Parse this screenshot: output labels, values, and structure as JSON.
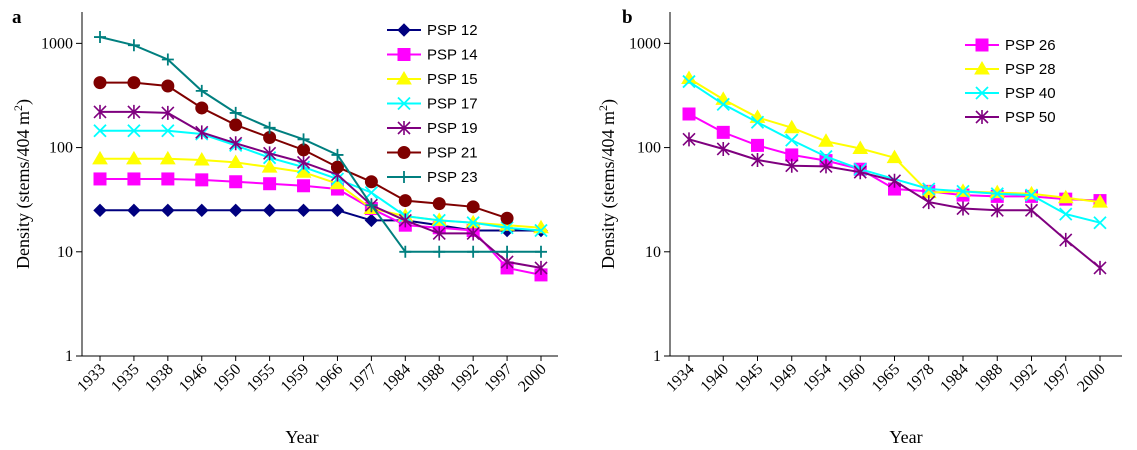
{
  "chart_data": [
    {
      "type": "line",
      "panel_label": "a",
      "xlabel": "Year",
      "ylabel_main": "Density (stems/404 m",
      "ylabel_sup": "2",
      "ylabel_tail": ")",
      "yscale": "log",
      "ylim": [
        1,
        2000
      ],
      "yticks": [
        1,
        10,
        100,
        1000
      ],
      "ytick_labels": [
        "1",
        "10",
        "100",
        "1000"
      ],
      "categories": [
        "1933",
        "1935",
        "1938",
        "1946",
        "1950",
        "1955",
        "1959",
        "1966",
        "1977",
        "1984",
        "1988",
        "1992",
        "1997",
        "2000"
      ],
      "legend_position": "top-right",
      "series": [
        {
          "name": "PSP 12",
          "color": "#00007f",
          "marker": "diamond",
          "values": [
            25,
            25,
            25,
            25,
            25,
            25,
            25,
            25,
            20,
            20,
            18,
            16,
            16,
            16
          ]
        },
        {
          "name": "PSP 14",
          "color": "#ff00ff",
          "marker": "square",
          "values": [
            50,
            50,
            50,
            49,
            47,
            45,
            43,
            40,
            26,
            18,
            17,
            16,
            7,
            6
          ]
        },
        {
          "name": "PSP 15",
          "color": "#ffff00",
          "marker": "triangle",
          "values": [
            78,
            78,
            78,
            76,
            72,
            65,
            58,
            45,
            26,
            22,
            20,
            19,
            18,
            17
          ]
        },
        {
          "name": "PSP 17",
          "color": "#00ffff",
          "marker": "x",
          "values": [
            145,
            145,
            145,
            135,
            105,
            80,
            65,
            50,
            37,
            22,
            20,
            19,
            17,
            16
          ]
        },
        {
          "name": "PSP 19",
          "color": "#7f007f",
          "marker": "star",
          "values": [
            220,
            220,
            215,
            140,
            110,
            88,
            72,
            55,
            28,
            20,
            15,
            15,
            8,
            7
          ]
        },
        {
          "name": "PSP 21",
          "color": "#7f0000",
          "marker": "circle",
          "values": [
            420,
            420,
            390,
            240,
            165,
            125,
            95,
            65,
            47,
            31,
            29,
            27,
            21,
            null
          ]
        },
        {
          "name": "PSP 23",
          "color": "#007f7f",
          "marker": "plus",
          "values": [
            1150,
            960,
            700,
            350,
            215,
            155,
            120,
            85,
            28,
            10,
            10,
            10,
            10,
            10
          ]
        }
      ]
    },
    {
      "type": "line",
      "panel_label": "b",
      "xlabel": "Year",
      "ylabel_main": "Density (stems/404 m",
      "ylabel_sup": "2",
      "ylabel_tail": ")",
      "yscale": "log",
      "ylim": [
        1,
        2000
      ],
      "yticks": [
        1,
        10,
        100,
        1000
      ],
      "ytick_labels": [
        "1",
        "10",
        "100",
        "1000"
      ],
      "categories": [
        "1934",
        "1940",
        "1945",
        "1949",
        "1954",
        "1960",
        "1965",
        "1978",
        "1984",
        "1988",
        "1992",
        "1997",
        "2000"
      ],
      "legend_position": "top-right",
      "series": [
        {
          "name": "PSP 26",
          "color": "#ff00ff",
          "marker": "square",
          "values": [
            210,
            140,
            105,
            85,
            75,
            62,
            40,
            38,
            35,
            34,
            34,
            32,
            31
          ]
        },
        {
          "name": "PSP 28",
          "color": "#ffff00",
          "marker": "triangle",
          "values": [
            460,
            290,
            195,
            155,
            115,
            98,
            80,
            37,
            38,
            37,
            36,
            33,
            30
          ]
        },
        {
          "name": "PSP 40",
          "color": "#00ffff",
          "marker": "x",
          "values": [
            430,
            260,
            175,
            118,
            82,
            62,
            null,
            40,
            38,
            36,
            35,
            23,
            19
          ]
        },
        {
          "name": "PSP 50",
          "color": "#7f007f",
          "marker": "star",
          "values": [
            120,
            97,
            76,
            67,
            66,
            58,
            48,
            30,
            26,
            25,
            25,
            13,
            7
          ]
        }
      ]
    }
  ]
}
